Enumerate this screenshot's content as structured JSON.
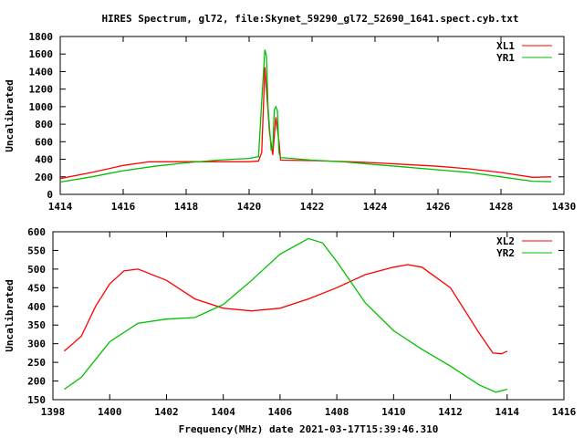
{
  "title": "HIRES Spectrum, gl72, file:Skynet_59290_gl72_52690_1641.spect.cyb.txt",
  "colors": {
    "red": "#ff0000",
    "green": "#00c000"
  },
  "chart_data": [
    {
      "type": "line",
      "xlabel": "",
      "ylabel": "Uncalibrated",
      "xlim": [
        1414,
        1430
      ],
      "ylim": [
        0,
        1800
      ],
      "xticks": [
        "1414",
        "1416",
        "1418",
        "1420",
        "1422",
        "1424",
        "1426",
        "1428",
        "1430"
      ],
      "yticks": [
        "0",
        "200",
        "400",
        "600",
        "800",
        "1000",
        "1200",
        "1400",
        "1600",
        "1800"
      ],
      "legend_position": "top-right",
      "series": [
        {
          "name": "XL1",
          "color": "#ff0000",
          "x": [
            1414,
            1415,
            1416,
            1416.8,
            1418,
            1420,
            1420.3,
            1420.4,
            1420.5,
            1420.55,
            1420.65,
            1420.75,
            1420.85,
            1420.95,
            1421,
            1422,
            1423,
            1424,
            1425,
            1426,
            1427,
            1428,
            1429,
            1429.6
          ],
          "y": [
            180,
            250,
            330,
            370,
            372,
            372,
            380,
            480,
            1450,
            1200,
            700,
            450,
            880,
            600,
            390,
            385,
            375,
            360,
            340,
            320,
            290,
            250,
            195,
            200
          ]
        },
        {
          "name": "YR1",
          "color": "#00c000",
          "x": [
            1414,
            1415,
            1416,
            1417,
            1418,
            1419,
            1420,
            1420.3,
            1420.4,
            1420.5,
            1420.55,
            1420.6,
            1420.7,
            1420.75,
            1420.8,
            1420.85,
            1420.9,
            1420.95,
            1421,
            1422,
            1423,
            1424,
            1425,
            1426,
            1427,
            1428,
            1429,
            1429.6
          ],
          "y": [
            140,
            200,
            270,
            320,
            360,
            390,
            410,
            430,
            1060,
            1650,
            1580,
            1000,
            500,
            540,
            960,
            1000,
            950,
            470,
            420,
            390,
            370,
            340,
            310,
            280,
            250,
            200,
            150,
            145
          ]
        }
      ]
    },
    {
      "type": "line",
      "xlabel": "Frequency(MHz) date 2021-03-17T15:39:46.310",
      "ylabel": "Uncalibrated",
      "xlim": [
        1398,
        1416
      ],
      "ylim": [
        150,
        600
      ],
      "xticks": [
        "1398",
        "1400",
        "1402",
        "1404",
        "1406",
        "1408",
        "1410",
        "1412",
        "1414",
        "1416"
      ],
      "yticks": [
        "150",
        "200",
        "250",
        "300",
        "350",
        "400",
        "450",
        "500",
        "550",
        "600"
      ],
      "legend_position": "top-right",
      "series": [
        {
          "name": "XL2",
          "color": "#ff0000",
          "x": [
            1398.4,
            1399,
            1399.5,
            1400,
            1400.5,
            1401,
            1402,
            1403,
            1404,
            1405,
            1406,
            1407,
            1408,
            1409,
            1410,
            1410.5,
            1411,
            1412,
            1413,
            1413.5,
            1413.8,
            1414
          ],
          "y": [
            280,
            320,
            400,
            460,
            495,
            500,
            470,
            420,
            395,
            388,
            395,
            420,
            450,
            485,
            505,
            512,
            505,
            450,
            330,
            275,
            273,
            280
          ]
        },
        {
          "name": "YR2",
          "color": "#00c000",
          "x": [
            1398.4,
            1399,
            1400,
            1401,
            1402,
            1403,
            1404,
            1405,
            1406,
            1407,
            1407.5,
            1408,
            1409,
            1410,
            1411,
            1412,
            1413,
            1413.6,
            1414
          ],
          "y": [
            178,
            210,
            305,
            355,
            366,
            370,
            405,
            470,
            540,
            582,
            570,
            520,
            410,
            335,
            285,
            240,
            190,
            170,
            178
          ]
        }
      ]
    }
  ]
}
